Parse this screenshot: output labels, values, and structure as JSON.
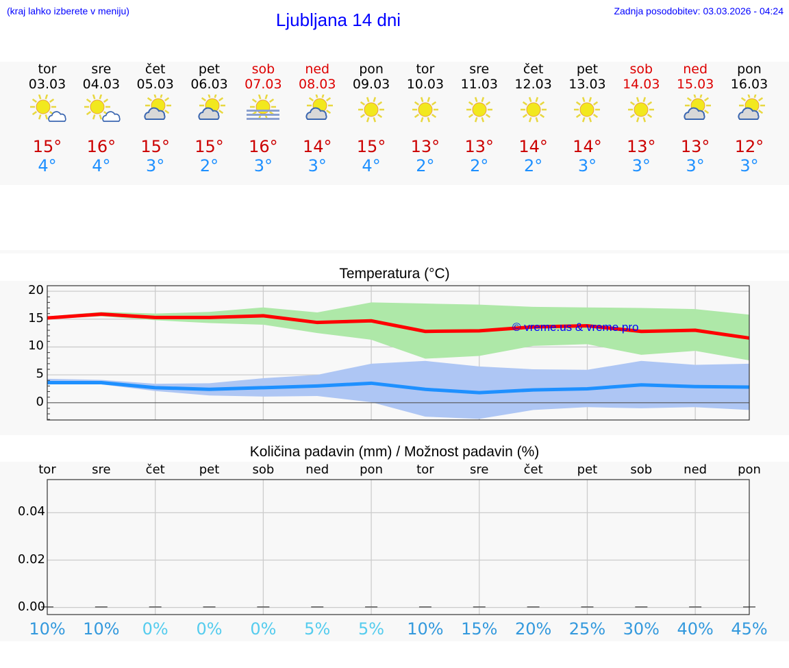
{
  "header": {
    "hint": "(kraj lahko izberete v meniju)",
    "title": "Ljubljana 14 dni",
    "updated": "Zadnja posodobitev: 03.03.2026 - 04:24"
  },
  "days": [
    {
      "name": "tor",
      "date": "03.03",
      "icon": "sun-small-cloud",
      "max": "15°",
      "min": "4°",
      "weekend": false
    },
    {
      "name": "sre",
      "date": "04.03",
      "icon": "sun-small-cloud",
      "max": "16°",
      "min": "4°",
      "weekend": false
    },
    {
      "name": "čet",
      "date": "05.03",
      "icon": "cloud-sun",
      "max": "15°",
      "min": "3°",
      "weekend": false
    },
    {
      "name": "pet",
      "date": "06.03",
      "icon": "cloud-sun",
      "max": "15°",
      "min": "2°",
      "weekend": false
    },
    {
      "name": "sob",
      "date": "07.03",
      "icon": "fog-sun",
      "max": "16°",
      "min": "3°",
      "weekend": true
    },
    {
      "name": "ned",
      "date": "08.03",
      "icon": "cloud-sun",
      "max": "14°",
      "min": "3°",
      "weekend": true
    },
    {
      "name": "pon",
      "date": "09.03",
      "icon": "sun",
      "max": "15°",
      "min": "4°",
      "weekend": false
    },
    {
      "name": "tor",
      "date": "10.03",
      "icon": "sun",
      "max": "13°",
      "min": "2°",
      "weekend": false
    },
    {
      "name": "sre",
      "date": "11.03",
      "icon": "sun",
      "max": "13°",
      "min": "2°",
      "weekend": false
    },
    {
      "name": "čet",
      "date": "12.03",
      "icon": "sun",
      "max": "14°",
      "min": "2°",
      "weekend": false
    },
    {
      "name": "pet",
      "date": "13.03",
      "icon": "sun",
      "max": "14°",
      "min": "3°",
      "weekend": false
    },
    {
      "name": "sob",
      "date": "14.03",
      "icon": "sun",
      "max": "13°",
      "min": "3°",
      "weekend": true
    },
    {
      "name": "ned",
      "date": "15.03",
      "icon": "cloud-sun",
      "max": "13°",
      "min": "3°",
      "weekend": true
    },
    {
      "name": "pon",
      "date": "16.03",
      "icon": "cloud-sun",
      "max": "12°",
      "min": "3°",
      "weekend": false
    }
  ],
  "colors": {
    "max": "#ff0000",
    "min": "#1e90ff",
    "max_band": "#aee8a8",
    "min_band": "#aec6f4",
    "pct_high": "#3399dd",
    "pct_low": "#55ccee"
  },
  "chart_data": [
    {
      "type": "line",
      "title": "Temperatura (°C)",
      "ylim": [
        -3.1,
        21
      ],
      "yticks": [
        "20",
        "15",
        "10",
        "5",
        "0"
      ],
      "watermark": "© vreme.us & vreme.pro",
      "series": [
        {
          "name": "max",
          "values": [
            15.2,
            15.9,
            15.3,
            15.3,
            15.6,
            14.4,
            14.7,
            12.8,
            12.9,
            13.6,
            13.8,
            12.8,
            13.0,
            11.6
          ],
          "band_upper": [
            15.5,
            16.3,
            16.0,
            16.3,
            17.1,
            16.2,
            18.0,
            17.8,
            17.6,
            17.2,
            17.1,
            17.0,
            16.8,
            15.8
          ],
          "band_lower": [
            15.0,
            15.5,
            14.8,
            14.3,
            14.0,
            12.5,
            11.3,
            7.9,
            8.4,
            10.2,
            10.5,
            8.6,
            9.3,
            7.6
          ]
        },
        {
          "name": "min",
          "values": [
            3.6,
            3.6,
            2.7,
            2.4,
            2.7,
            3.0,
            3.5,
            2.4,
            1.8,
            2.3,
            2.5,
            3.2,
            2.9,
            2.8
          ],
          "band_upper": [
            4.3,
            4.1,
            3.4,
            3.5,
            4.4,
            5.0,
            7.0,
            7.5,
            6.5,
            6.0,
            5.9,
            7.5,
            6.8,
            7.0
          ],
          "band_lower": [
            3.4,
            3.3,
            2.1,
            1.3,
            1.1,
            1.2,
            0.1,
            -2.5,
            -2.9,
            -1.3,
            -0.8,
            -1.0,
            -0.8,
            -1.3
          ]
        }
      ]
    },
    {
      "type": "bar",
      "title": "Količina padavin (mm) / Možnost padavin (%)",
      "ylim": [
        -0.003,
        0.054
      ],
      "yticks": [
        "0.04",
        "0.02",
        "0.00"
      ],
      "categories": [
        "tor",
        "sre",
        "čet",
        "pet",
        "sob",
        "ned",
        "pon",
        "tor",
        "sre",
        "čet",
        "pet",
        "sob",
        "ned",
        "pon"
      ],
      "values": [
        0,
        0,
        0,
        0,
        0,
        0,
        0,
        0,
        0,
        0,
        0,
        0,
        0,
        0
      ],
      "probability": [
        "10%",
        "10%",
        "0%",
        "0%",
        "0%",
        "5%",
        "5%",
        "10%",
        "15%",
        "20%",
        "25%",
        "30%",
        "40%",
        "45%"
      ]
    }
  ]
}
